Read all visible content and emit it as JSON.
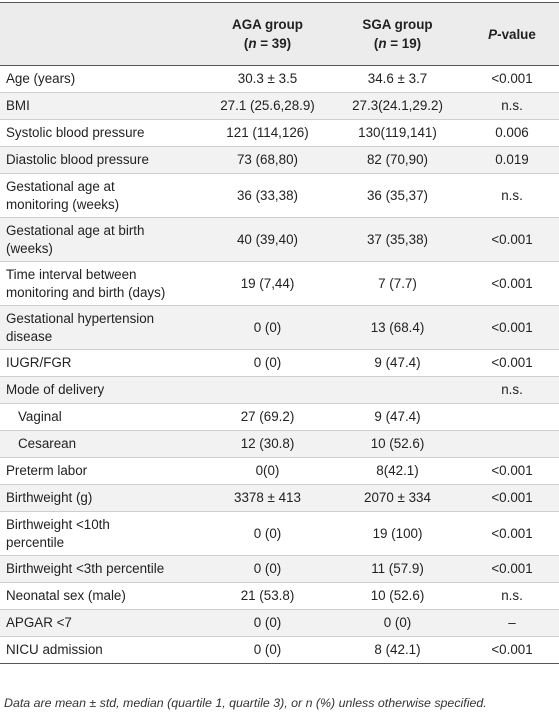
{
  "table": {
    "headers": {
      "col1_line1": "AGA group",
      "col1_n_label": "n",
      "col1_n_value": " = 39",
      "col2_line1": "SGA group",
      "col2_n_label": "n",
      "col2_n_value": " = 19",
      "col3_p": "P",
      "col3_rest": "-value"
    },
    "rows": [
      {
        "label": "Age (years)",
        "aga": "30.3 ± 3.5",
        "sga": "34.6 ± 3.7",
        "p": "<0.001"
      },
      {
        "label": "BMI",
        "aga": "27.1 (25.6,28.9)",
        "sga": "27.3(24.1,29.2)",
        "p": "n.s."
      },
      {
        "label": "Systolic blood pressure",
        "aga": "121 (114,126)",
        "sga": "130(119,141)",
        "p": "0.006"
      },
      {
        "label": "Diastolic blood pressure",
        "aga": "73 (68,80)",
        "sga": "82 (70,90)",
        "p": "0.019"
      },
      {
        "label_line1": "Gestational age at",
        "label_line2": "monitoring (weeks)",
        "aga": "36 (33,38)",
        "sga": "36 (35,37)",
        "p": "n.s."
      },
      {
        "label_line1": "Gestational age at birth",
        "label_line2": "(weeks)",
        "aga": "40 (39,40)",
        "sga": "37 (35,38)",
        "p": "<0.001"
      },
      {
        "label_line1": "Time interval between",
        "label_line2": "monitoring and birth (days)",
        "aga": "19 (7,44)",
        "sga": "7 (7.7)",
        "p": "<0.001"
      },
      {
        "label_line1": "Gestational hypertension",
        "label_line2": "disease",
        "aga": "0 (0)",
        "sga": "13 (68.4)",
        "p": "<0.001"
      },
      {
        "label": "IUGR/FGR",
        "aga": "0 (0)",
        "sga": "9 (47.4)",
        "p": "<0.001"
      },
      {
        "label": "Mode of delivery",
        "aga": "",
        "sga": "",
        "p": "n.s."
      },
      {
        "label": "Vaginal",
        "aga": "27 (69.2)",
        "sga": "9 (47.4)",
        "p": ""
      },
      {
        "label": "Cesarean",
        "aga": "12 (30.8)",
        "sga": "10 (52.6)",
        "p": ""
      },
      {
        "label": "Preterm labor",
        "aga": "0(0)",
        "sga": "8(42.1)",
        "p": "<0.001"
      },
      {
        "label": "Birthweight (g)",
        "aga": "3378 ± 413",
        "sga": "2070 ± 334",
        "p": "<0.001"
      },
      {
        "label_line1": "Birthweight <10th",
        "label_line2": "percentile",
        "aga": "0 (0)",
        "sga": "19 (100)",
        "p": "<0.001"
      },
      {
        "label": "Birthweight <3th percentile",
        "aga": "0 (0)",
        "sga": "11 (57.9)",
        "p": "<0.001"
      },
      {
        "label": "Neonatal sex (male)",
        "aga": "21 (53.8)",
        "sga": "10 (52.6)",
        "p": "n.s."
      },
      {
        "label": "APGAR <7",
        "aga": "0 (0)",
        "sga": "0 (0)",
        "p": "–"
      },
      {
        "label": "NICU admission",
        "aga": "0 (0)",
        "sga": "8 (42.1)",
        "p": "<0.001"
      }
    ],
    "footnote": "Data are mean ± std, median (quartile 1, quartile 3), or n (%) unless otherwise specified."
  }
}
